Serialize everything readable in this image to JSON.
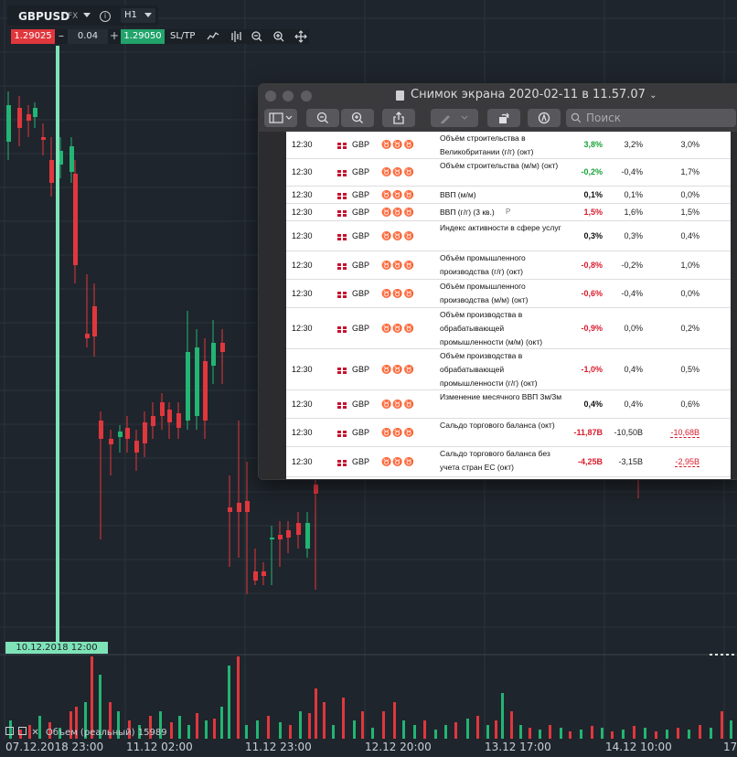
{
  "toolbar": {
    "symbol": "GBPUSD",
    "symbol_type": "FX",
    "timeframe": "H1",
    "bid": "1.29025",
    "lot": "0.04",
    "ask": "1.29050",
    "sltp_label": "SL/TP",
    "minus_label": "–",
    "plus_label": "+",
    "info_label": "i"
  },
  "chart": {
    "crosshair_time": "10.12.2018 12:00",
    "volume_label": "Объем (реальный) 15989",
    "x_labels": [
      "07.12.2018 23:00",
      "11.12 02:00",
      "11.12 23:00",
      "12.12 20:00",
      "13.12 17:00",
      "14.12 10:00",
      "17"
    ],
    "bull_color": "#22b573",
    "bear_color": "#e0373d"
  },
  "preview": {
    "title": "Снимок экрана 2020-02-11 в 11.57.07",
    "search_placeholder": "Поиск",
    "rows": [
      {
        "time": "12:30",
        "cur": "GBP",
        "bulls": "2",
        "event": "Объём строительства в Великобритании (г/г) (окт)",
        "actual": "3,8%",
        "actual_class": "pos",
        "forecast": "3,2%",
        "previous": "3,0%",
        "revised": false
      },
      {
        "time": "12:30",
        "cur": "GBP",
        "bulls": "2",
        "event": "Объём строительства (м/м) (окт)",
        "actual": "-0,2%",
        "actual_class": "pos",
        "forecast": "-0,4%",
        "previous": "1,7%",
        "revised": false
      },
      {
        "time": "12:30",
        "cur": "GBP",
        "bulls": "3",
        "event": "ВВП (м/м)",
        "actual": "0,1%",
        "actual_class": "neu",
        "forecast": "0,1%",
        "previous": "0,0%",
        "revised": false
      },
      {
        "time": "12:30",
        "cur": "GBP",
        "bulls": "3",
        "event": "ВВП (г/г) (3 кв.)",
        "badge": "P",
        "actual": "1,5%",
        "actual_class": "neg",
        "forecast": "1,6%",
        "previous": "1,5%",
        "revised": false
      },
      {
        "time": "12:30",
        "cur": "GBP",
        "bulls": "1",
        "event": "Индекс активности в сфере услуг",
        "actual": "0,3%",
        "actual_class": "neu",
        "forecast": "0,3%",
        "previous": "0,4%",
        "revised": false
      },
      {
        "time": "12:30",
        "cur": "GBP",
        "bulls": "2",
        "event": "Объём промышленного производства (г/г) (окт)",
        "actual": "-0,8%",
        "actual_class": "neg",
        "forecast": "-0,2%",
        "previous": "1,0%",
        "revised": false
      },
      {
        "time": "12:30",
        "cur": "GBP",
        "bulls": "3",
        "event": "Объём промышленного производства (м/м) (окт)",
        "actual": "-0,6%",
        "actual_class": "neg",
        "forecast": "-0,4%",
        "previous": "0,0%",
        "revised": false
      },
      {
        "time": "12:30",
        "cur": "GBP",
        "bulls": "3",
        "event": "Объём производства в обрабатывающей промышленности (м/м) (окт)",
        "actual": "-0,9%",
        "actual_class": "neg",
        "forecast": "0,0%",
        "previous": "0,2%",
        "revised": false
      },
      {
        "time": "12:30",
        "cur": "GBP",
        "bulls": "1",
        "event": "Объём производства в обрабатывающей промышленности (г/г) (окт)",
        "actual": "-1,0%",
        "actual_class": "neg",
        "forecast": "0,4%",
        "previous": "0,5%",
        "revised": false
      },
      {
        "time": "12:30",
        "cur": "GBP",
        "bulls": "2",
        "event": "Изменение месячного ВВП 3м/3м",
        "actual": "0,4%",
        "actual_class": "neu",
        "forecast": "0,4%",
        "previous": "0,6%",
        "revised": false
      },
      {
        "time": "12:30",
        "cur": "GBP",
        "bulls": "2",
        "event": "Сальдо торгового баланса (окт)",
        "actual": "-11,87B",
        "actual_class": "neg",
        "forecast": "-10,50B",
        "previous": "-10,68B",
        "revised": true
      },
      {
        "time": "12:30",
        "cur": "GBP",
        "bulls": "1",
        "event": "Сальдо торгового баланса без учета стран ЕС (окт)",
        "actual": "-4,25B",
        "actual_class": "neg",
        "forecast": "-3,15B",
        "previous": "-2,95B",
        "revised": true
      }
    ]
  }
}
